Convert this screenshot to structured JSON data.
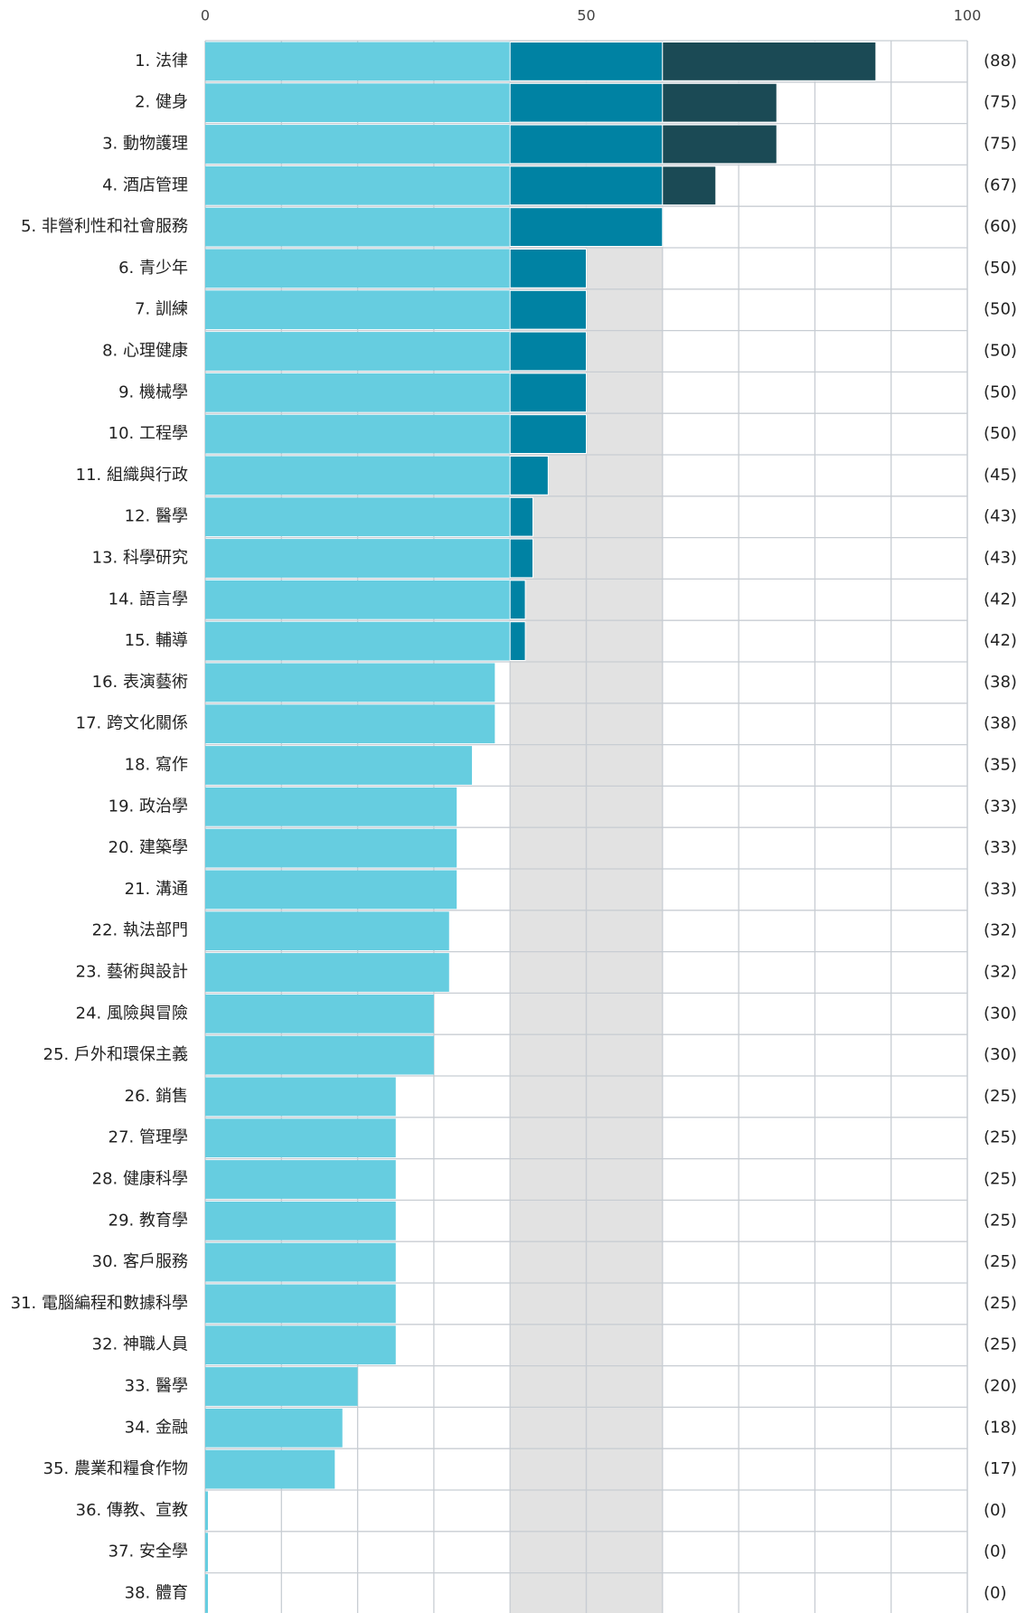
{
  "chart_data": {
    "type": "hbar",
    "categories": [
      "1. 法律",
      "2. 健身",
      "3. 動物護理",
      "4. 酒店管理",
      "5. 非營利性和社會服務",
      "6. 青少年",
      "7. 訓練",
      "8. 心理健康",
      "9. 機械學",
      "10. 工程學",
      "11. 組織與行政",
      "12. 醫學",
      "13. 科學研究",
      "14. 語言學",
      "15. 輔導",
      "16. 表演藝術",
      "17. 跨文化關係",
      "18. 寫作",
      "19. 政治學",
      "20. 建築學",
      "21. 溝通",
      "22. 執法部門",
      "23. 藝術與設計",
      "24. 風險與冒險",
      "25. 戶外和環保主義",
      "26. 銷售",
      "27. 管理學",
      "28. 健康科學",
      "29. 教育學",
      "30. 客戶服務",
      "31. 電腦編程和數據科學",
      "32. 神職人員",
      "33. 醫學",
      "34. 金融",
      "35. 農業和糧食作物",
      "36. 傳教、宣教",
      "37. 安全學",
      "38. 體育"
    ],
    "values": [
      88,
      75,
      75,
      67,
      60,
      50,
      50,
      50,
      50,
      50,
      45,
      43,
      43,
      42,
      42,
      38,
      38,
      35,
      33,
      33,
      33,
      32,
      32,
      30,
      30,
      25,
      25,
      25,
      25,
      25,
      25,
      25,
      20,
      18,
      17,
      0,
      0,
      0
    ],
    "value_labels": [
      "(88)",
      "(75)",
      "(75)",
      "(67)",
      "(60)",
      "(50)",
      "(50)",
      "(50)",
      "(50)",
      "(50)",
      "(45)",
      "(43)",
      "(43)",
      "(42)",
      "(42)",
      "(38)",
      "(38)",
      "(35)",
      "(33)",
      "(33)",
      "(33)",
      "(32)",
      "(32)",
      "(30)",
      "(30)",
      "(25)",
      "(25)",
      "(25)",
      "(25)",
      "(25)",
      "(25)",
      "(25)",
      "(20)",
      "(18)",
      "(17)",
      "(0)",
      "(0)",
      "(0)"
    ],
    "xlim": [
      0,
      100
    ],
    "xticks": [
      0,
      50,
      100
    ],
    "minor_xticks": [
      10,
      20,
      30,
      40,
      60,
      70,
      80,
      90
    ],
    "thresholds": [
      40,
      60
    ],
    "colors": [
      "#66cde0",
      "#0082a3",
      "#1b4a55"
    ],
    "highlight_range": [
      40,
      60
    ],
    "highlight_color": "#e2e2e2",
    "grid": true
  }
}
